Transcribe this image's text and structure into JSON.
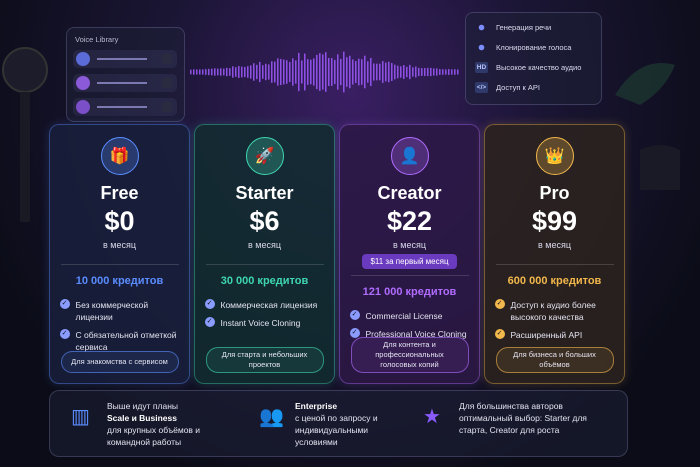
{
  "voice_library": {
    "title": "Voice Library"
  },
  "features": [
    {
      "label": "Генерация речи"
    },
    {
      "label": "Клонирование голоса"
    },
    {
      "icon": "HD",
      "label": "Высокое качество аудио"
    },
    {
      "icon": "</>",
      "label": "Доступ к API"
    }
  ],
  "plans": [
    {
      "name": "Free",
      "price": "$0",
      "period": "в месяц",
      "credits": "10 000 кредитов",
      "features": [
        "Без коммерческой лицензии",
        "С обязательной отметкой сервиса"
      ],
      "button": "Для знакомства с сервисом"
    },
    {
      "name": "Starter",
      "price": "$6",
      "period": "в месяц",
      "credits": "30 000 кредитов",
      "features": [
        "Коммерческая лицензия",
        "Instant Voice Cloning"
      ],
      "button": "Для старта и небольших проектов"
    },
    {
      "name": "Creator",
      "price": "$22",
      "period": "в месяц",
      "promo": "$11 за первый месяц",
      "credits": "121 000 кредитов",
      "features": [
        "Commercial License",
        "Professional Voice Cloning"
      ],
      "button": "Для контента и профессиональных голосовых копий"
    },
    {
      "name": "Pro",
      "price": "$99",
      "period": "в месяц",
      "credits": "600 000 кредитов",
      "features": [
        "Доступ к аудио более высокого качества",
        "Расширенный API"
      ],
      "button": "Для бизнеса и больших объёмов"
    }
  ],
  "footer": [
    {
      "intro": "Выше идут планы",
      "heading": "Scale и Business",
      "text": "для крупных объёмов и командной работы"
    },
    {
      "heading": "Enterprise",
      "text": "с ценой по запросу и индивидуальными условиями"
    },
    {
      "text": "Для большинства авторов оптимальный выбор: Starter для старта, Creator для роста"
    }
  ]
}
